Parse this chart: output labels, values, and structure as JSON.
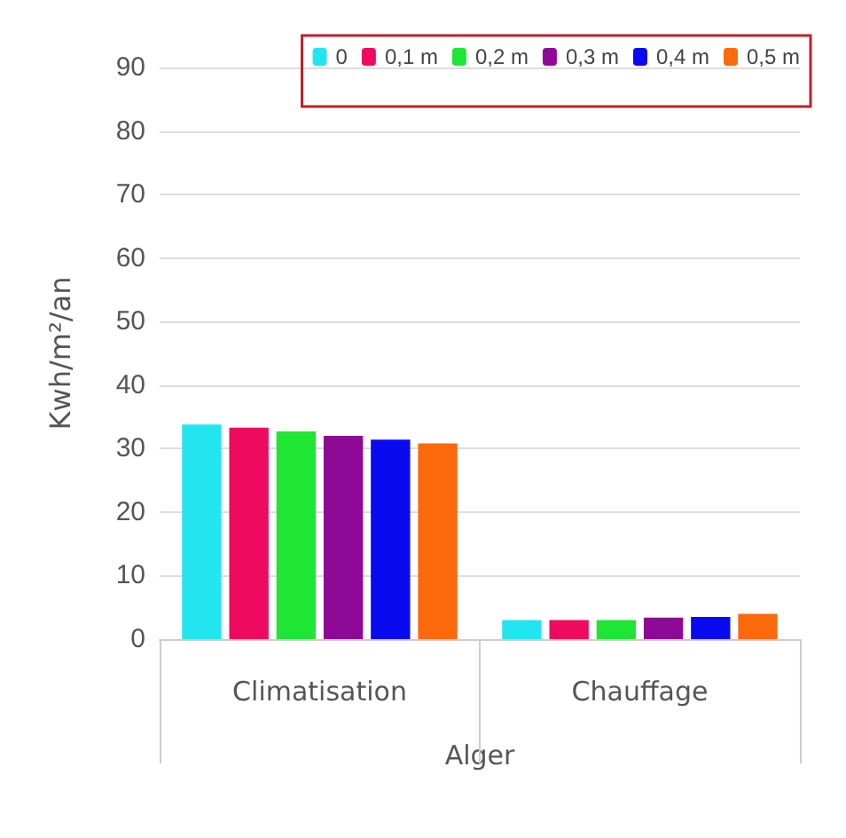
{
  "chart_data": {
    "type": "bar",
    "ylabel": "Kwh/m²/an",
    "xlabel": "Alger",
    "categories": [
      "Climatisation",
      "Chauffage"
    ],
    "series": [
      {
        "name": "0",
        "color": "#22e5ef",
        "values": [
          33.8,
          3.0
        ]
      },
      {
        "name": "0,1 m",
        "color": "#ee0a5e",
        "values": [
          33.3,
          3.0
        ]
      },
      {
        "name": "0,2 m",
        "color": "#1ee632",
        "values": [
          32.7,
          3.0
        ]
      },
      {
        "name": "0,3 m",
        "color": "#8e0a96",
        "values": [
          32.0,
          3.4
        ]
      },
      {
        "name": "0,4 m",
        "color": "#0a0af0",
        "values": [
          31.4,
          3.5
        ]
      },
      {
        "name": "0,5 m",
        "color": "#fa6a0a",
        "values": [
          30.8,
          4.0
        ]
      }
    ],
    "ylim": [
      0,
      90
    ],
    "yticks": [
      0,
      10,
      20,
      30,
      40,
      50,
      60,
      70,
      80,
      90
    ],
    "grid": "y",
    "legend": "top right"
  }
}
